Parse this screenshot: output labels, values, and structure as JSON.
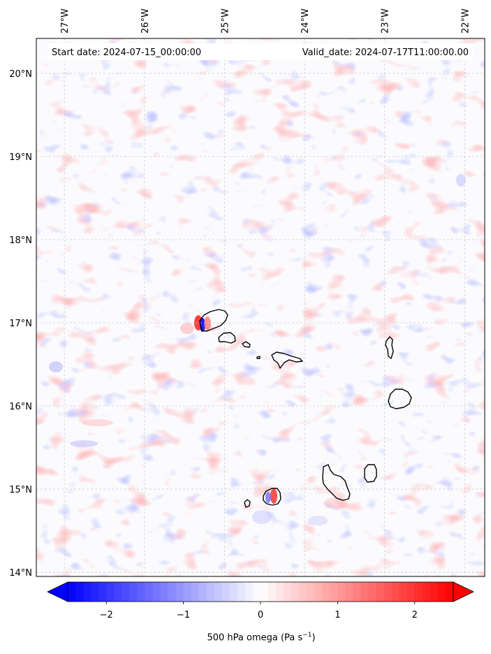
{
  "map": {
    "start_label": "Start date: 2024-07-15_00:00:00",
    "valid_label": "Valid_date: 2024-07-17T11:00:00.00",
    "lon_ticks": [
      "27°W",
      "26°W",
      "25°W",
      "24°W",
      "23°W",
      "22°W"
    ],
    "lat_ticks": [
      "20°N",
      "19°N",
      "18°N",
      "17°N",
      "16°N",
      "15°N",
      "14°N"
    ],
    "extent": {
      "lon_min": -27.35,
      "lon_max": -21.75,
      "lat_min": 13.95,
      "lat_max": 20.42
    },
    "gridlines": true
  },
  "colorbar": {
    "label_main": "500 hPa omega (Pa s",
    "label_sup": "−1",
    "label_close": ")",
    "ticks": [
      "−2",
      "−1",
      "0",
      "1",
      "2"
    ],
    "tick_values": [
      -2,
      -1,
      0,
      1,
      2
    ],
    "range": [
      -2.5,
      2.5
    ],
    "extend": "both",
    "colormap": "bwr",
    "low_color": "#0000ff",
    "mid_color": "#ffffff",
    "high_color": "#ff0000"
  },
  "islands": [
    "Santo Antão",
    "São Vicente",
    "Santa Luzia",
    "São Nicolau",
    "Sal",
    "Boa Vista",
    "Maio",
    "Santiago",
    "Fogo",
    "Brava"
  ]
}
